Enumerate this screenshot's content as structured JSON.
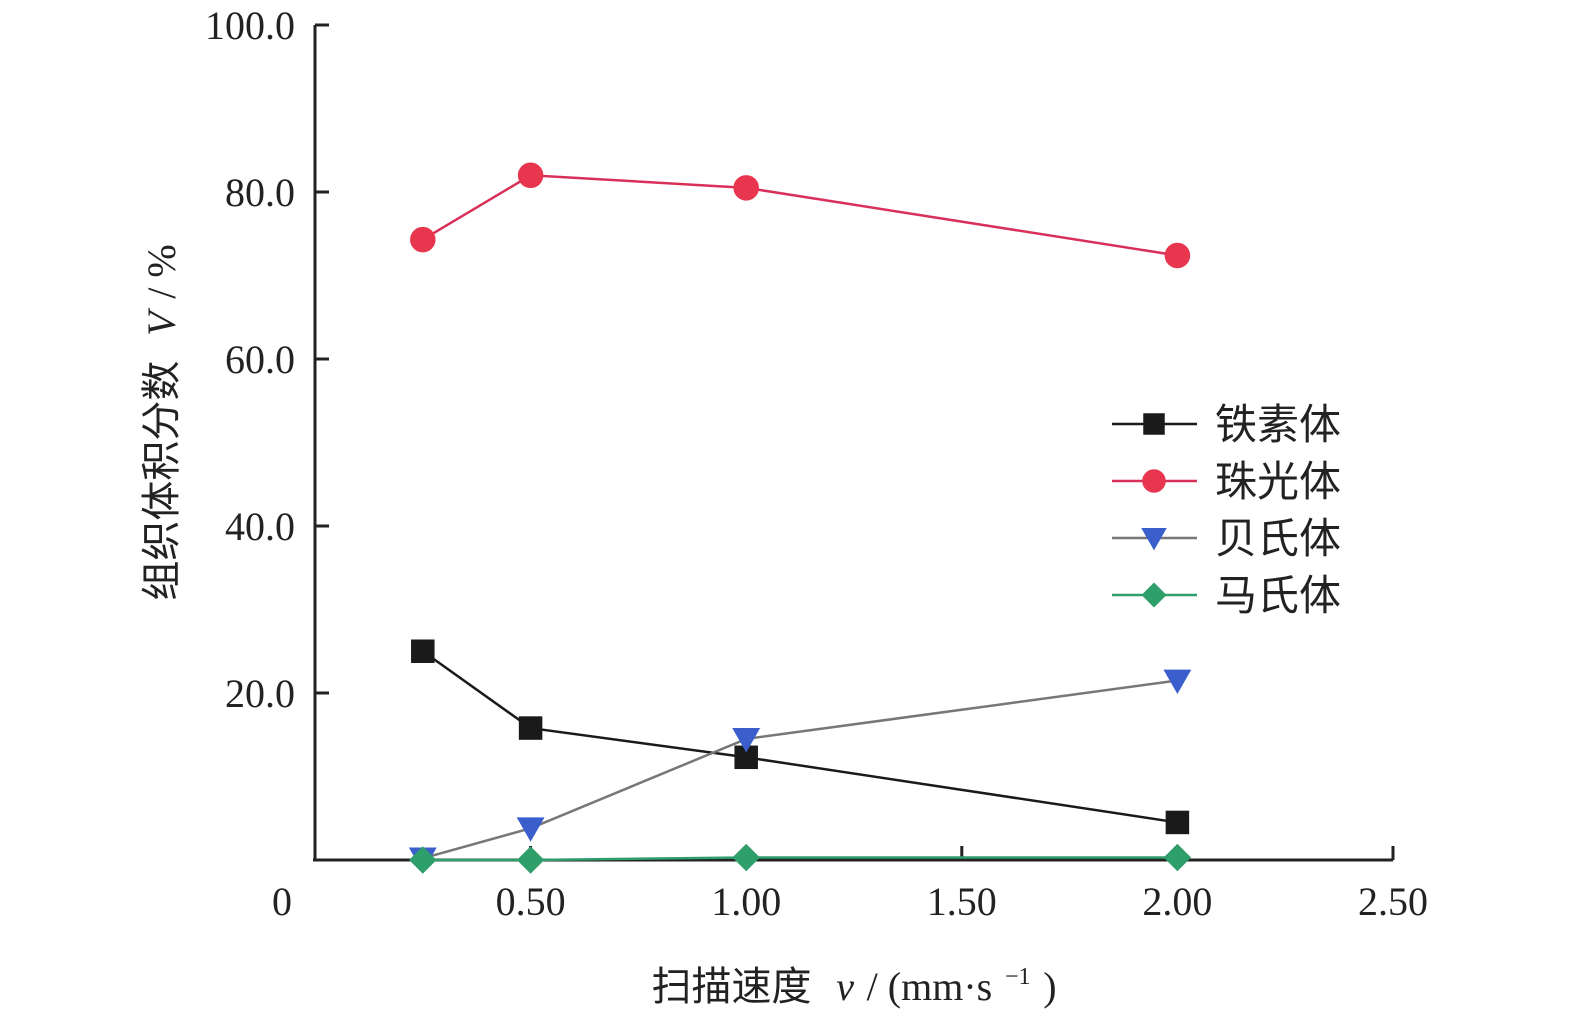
{
  "chart_data": {
    "type": "line",
    "xlabel_cn": "扫描速度",
    "xlabel_var": "v",
    "xlabel_unit_prefix": " / (mm·s",
    "xlabel_unit_sup": "−1",
    "xlabel_unit_suffix": ")",
    "ylabel_cn": "组织体积分数",
    "ylabel_var": "V",
    "ylabel_unit": " / %",
    "xlim": [
      0,
      2.5
    ],
    "ylim": [
      0,
      100
    ],
    "x_ticks": [
      "0",
      "0.50",
      "1.00",
      "1.50",
      "2.00",
      "2.50"
    ],
    "y_ticks": [
      "20.0",
      "40.0",
      "60.0",
      "80.0",
      "100.0"
    ],
    "legend_position": "right",
    "grid": false,
    "series": [
      {
        "name": "铁素体",
        "color": "#1a1a1a",
        "line_color": "#1a1a1a",
        "marker": "square",
        "x": [
          0.25,
          0.5,
          1.0,
          2.0
        ],
        "y": [
          25.0,
          15.8,
          12.3,
          4.5
        ]
      },
      {
        "name": "珠光体",
        "color": "#e8364f",
        "line_color": "#d9305a",
        "marker": "circle",
        "x": [
          0.25,
          0.5,
          1.0,
          2.0
        ],
        "y": [
          74.3,
          82.0,
          80.5,
          72.4
        ]
      },
      {
        "name": "贝氏体",
        "color": "#3a5fcd",
        "line_color": "#777777",
        "marker": "triangle-down",
        "x": [
          0.25,
          0.5,
          1.0,
          2.0
        ],
        "y": [
          0.2,
          3.8,
          14.5,
          21.5
        ]
      },
      {
        "name": "马氏体",
        "color": "#2e9e6a",
        "line_color": "#2e9e6a",
        "marker": "diamond",
        "x": [
          0.25,
          0.5,
          1.0,
          2.0
        ],
        "y": [
          0.0,
          0.0,
          0.3,
          0.3
        ]
      }
    ]
  }
}
